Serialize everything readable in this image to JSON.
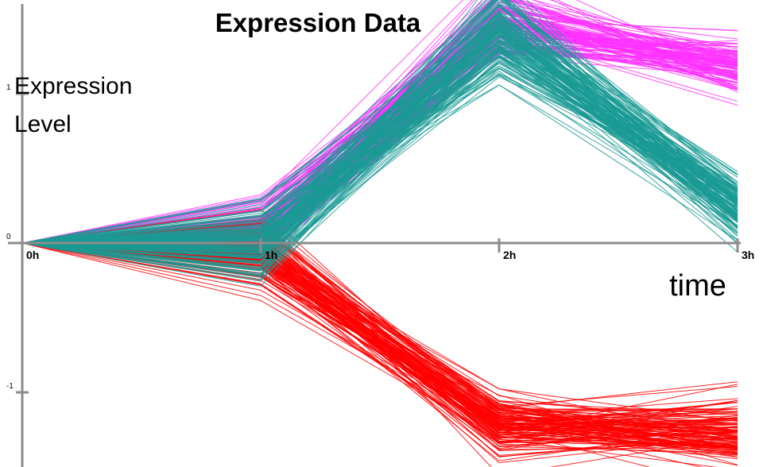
{
  "chart_data": {
    "type": "line",
    "title": "Expression Data",
    "xlabel": "time",
    "ylabel": "Expression Level",
    "categories": [
      "0h",
      "1h",
      "2h",
      "3h"
    ],
    "y_ticks": [
      "1",
      "0",
      "-1"
    ],
    "y_tick_values": [
      1,
      0,
      -1
    ],
    "ylim": [
      -1.55,
      1.65
    ],
    "grid": false,
    "legend": "none",
    "series": [
      {
        "color": "#ff33ff",
        "count": 120,
        "values": [
          0,
          0.1,
          1.5,
          1.18
        ],
        "spread": [
          0,
          0.11,
          0.13,
          0.09
        ]
      },
      {
        "color": "#ff0000",
        "count": 130,
        "values": [
          0,
          -0.07,
          -1.22,
          -1.28
        ],
        "spread": [
          0,
          0.11,
          0.11,
          0.12
        ]
      },
      {
        "color": "#1a9a94",
        "count": 150,
        "values": [
          0,
          -0.01,
          1.42,
          0.25
        ],
        "spread": [
          0,
          0.12,
          0.15,
          0.11
        ]
      }
    ]
  }
}
